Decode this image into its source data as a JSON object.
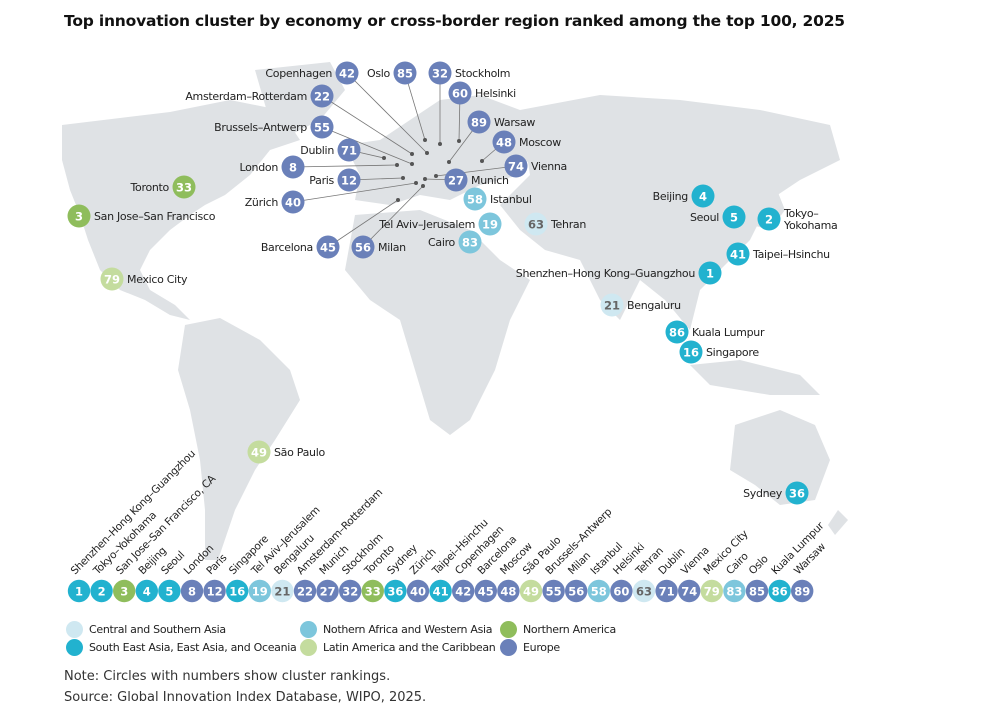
{
  "title": "Top innovation cluster by economy or cross-border region ranked among the top 100, 2025",
  "regions": {
    "csa": {
      "name": "Central and Southern Asia",
      "color": "#cfe8f1"
    },
    "seao": {
      "name": "South East Asia, East Asia, and Oceania",
      "color": "#22b2cf"
    },
    "nawa": {
      "name": "Nothern Africa and Western Asia",
      "color": "#7dc6dc"
    },
    "lac": {
      "name": "Latin America and the Caribbean",
      "color": "#c4dc9e"
    },
    "na": {
      "name": "Northern America",
      "color": "#8fbd5c"
    },
    "eu": {
      "name": "Europe",
      "color": "#6a80b9"
    }
  },
  "legend_order": [
    "csa",
    "seao",
    "nawa",
    "lac",
    "na",
    "eu"
  ],
  "clusters": [
    {
      "rank": 1,
      "map_label": "Shenzhen–Hong Kong–Guangzhou",
      "row_label": "Shenzhen–Hong Kong–Guangzhou",
      "region": "seao"
    },
    {
      "rank": 2,
      "map_label": "Tokyo–\nYokohama",
      "row_label": "Tokyo–Yokohama",
      "region": "seao"
    },
    {
      "rank": 3,
      "map_label": "San Jose–San Francisco",
      "row_label": "San Jose–San Francisco, CA",
      "region": "na"
    },
    {
      "rank": 4,
      "map_label": "Beijing",
      "row_label": "Beijing",
      "region": "seao"
    },
    {
      "rank": 5,
      "map_label": "Seoul",
      "row_label": "Seoul",
      "region": "seao"
    },
    {
      "rank": 8,
      "map_label": "London",
      "row_label": "London",
      "region": "eu"
    },
    {
      "rank": 12,
      "map_label": "Paris",
      "row_label": "Paris",
      "region": "eu"
    },
    {
      "rank": 16,
      "map_label": "Singapore",
      "row_label": "Singapore",
      "region": "seao"
    },
    {
      "rank": 19,
      "map_label": "Tel Aviv–Jerusalem",
      "row_label": "Tel Aviv–Jerusalem",
      "region": "nawa"
    },
    {
      "rank": 21,
      "map_label": "Bengaluru",
      "row_label": "Bengaluru",
      "region": "csa"
    },
    {
      "rank": 22,
      "map_label": "Amsterdam–Rotterdam",
      "row_label": "Amsterdam–Rotterdam",
      "region": "eu"
    },
    {
      "rank": 27,
      "map_label": "Munich",
      "row_label": "Munich",
      "region": "eu"
    },
    {
      "rank": 32,
      "map_label": "Stockholm",
      "row_label": "Stockholm",
      "region": "eu"
    },
    {
      "rank": 33,
      "map_label": "Toronto",
      "row_label": "Toronto",
      "region": "na"
    },
    {
      "rank": 36,
      "map_label": "Sydney",
      "row_label": "Sydney",
      "region": "seao"
    },
    {
      "rank": 40,
      "map_label": "Zürich",
      "row_label": "Zürich",
      "region": "eu"
    },
    {
      "rank": 41,
      "map_label": "Taipei–Hsinchu",
      "row_label": "Taipei–Hsinchu",
      "region": "seao"
    },
    {
      "rank": 42,
      "map_label": "Copenhagen",
      "row_label": "Copenhagen",
      "region": "eu"
    },
    {
      "rank": 45,
      "map_label": "Barcelona",
      "row_label": "Barcelona",
      "region": "eu"
    },
    {
      "rank": 48,
      "map_label": "Moscow",
      "row_label": "Moscow",
      "region": "eu"
    },
    {
      "rank": 49,
      "map_label": "São Paulo",
      "row_label": "São Paulo",
      "region": "lac"
    },
    {
      "rank": 55,
      "map_label": "Brussels–Antwerp",
      "row_label": "Brussels–Antwerp",
      "region": "eu"
    },
    {
      "rank": 56,
      "map_label": "Milan",
      "row_label": "Milan",
      "region": "eu"
    },
    {
      "rank": 58,
      "map_label": "Istanbul",
      "row_label": "Istanbul",
      "region": "nawa"
    },
    {
      "rank": 60,
      "map_label": "Helsinki",
      "row_label": "Helsinki",
      "region": "eu"
    },
    {
      "rank": 63,
      "map_label": "Tehran",
      "row_label": "Tehran",
      "region": "csa"
    },
    {
      "rank": 71,
      "map_label": "Dublin",
      "row_label": "Dublin",
      "region": "eu"
    },
    {
      "rank": 74,
      "map_label": "Vienna",
      "row_label": "Vienna",
      "region": "eu"
    },
    {
      "rank": 79,
      "map_label": "Mexico City",
      "row_label": "Mexico City",
      "region": "lac"
    },
    {
      "rank": 83,
      "map_label": "Cairo",
      "row_label": "Cairo",
      "region": "nawa"
    },
    {
      "rank": 85,
      "map_label": "Oslo",
      "row_label": "Oslo",
      "region": "eu"
    },
    {
      "rank": 86,
      "map_label": "Kuala Lumpur",
      "row_label": "Kuala Lumpur",
      "region": "seao"
    },
    {
      "rank": 89,
      "map_label": "Warsaw",
      "row_label": "Warsaw",
      "region": "eu"
    }
  ],
  "note": "Note: Circles with numbers show cluster rankings.",
  "source": "Source: Global Innovation Index Database, WIPO, 2025."
}
